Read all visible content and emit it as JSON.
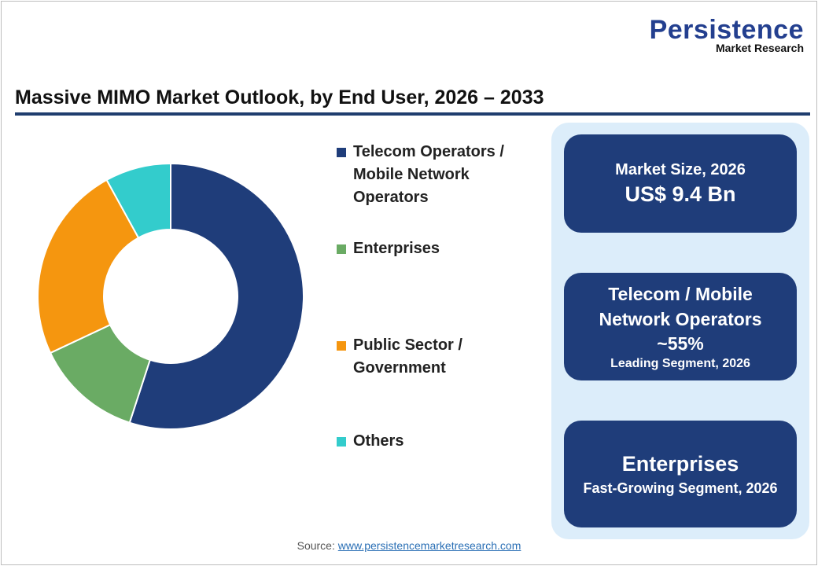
{
  "logo": {
    "main": "Persistence",
    "sub": "Market Research"
  },
  "title": "Massive MIMO Market Outlook, by End User, 2026 – 2033",
  "chart_data": {
    "type": "pie",
    "donut": true,
    "title": "Massive MIMO Market Outlook, by End User, 2026 – 2033",
    "categories": [
      "Telecom Operators / Mobile Network Operators",
      "Enterprises",
      "Public Sector / Government",
      "Others"
    ],
    "values": [
      55,
      13,
      24,
      8
    ],
    "unit": "%",
    "colors": [
      "#1f3d7a",
      "#6aab64",
      "#f5960f",
      "#33cccc"
    ],
    "legend_position": "right"
  },
  "legend": [
    {
      "lines": [
        "Telecom Operators /",
        "Mobile Network",
        "Operators"
      ]
    },
    {
      "lines": [
        "Enterprises"
      ]
    },
    {
      "lines": [
        "Public Sector /",
        "Government"
      ]
    },
    {
      "lines": [
        "Others"
      ]
    }
  ],
  "cards": [
    {
      "label": "Market Size, 2026",
      "value": "US$ 9.4 Bn"
    },
    {
      "line1": "Telecom / Mobile",
      "line2": "Network Operators",
      "value": "~55%",
      "sub": "Leading Segment, 2026"
    },
    {
      "value": "Enterprises",
      "sub": "Fast-Growing Segment, 2026"
    }
  ],
  "source": {
    "label": "Source: ",
    "link": "www.persistencemarketresearch.com"
  }
}
